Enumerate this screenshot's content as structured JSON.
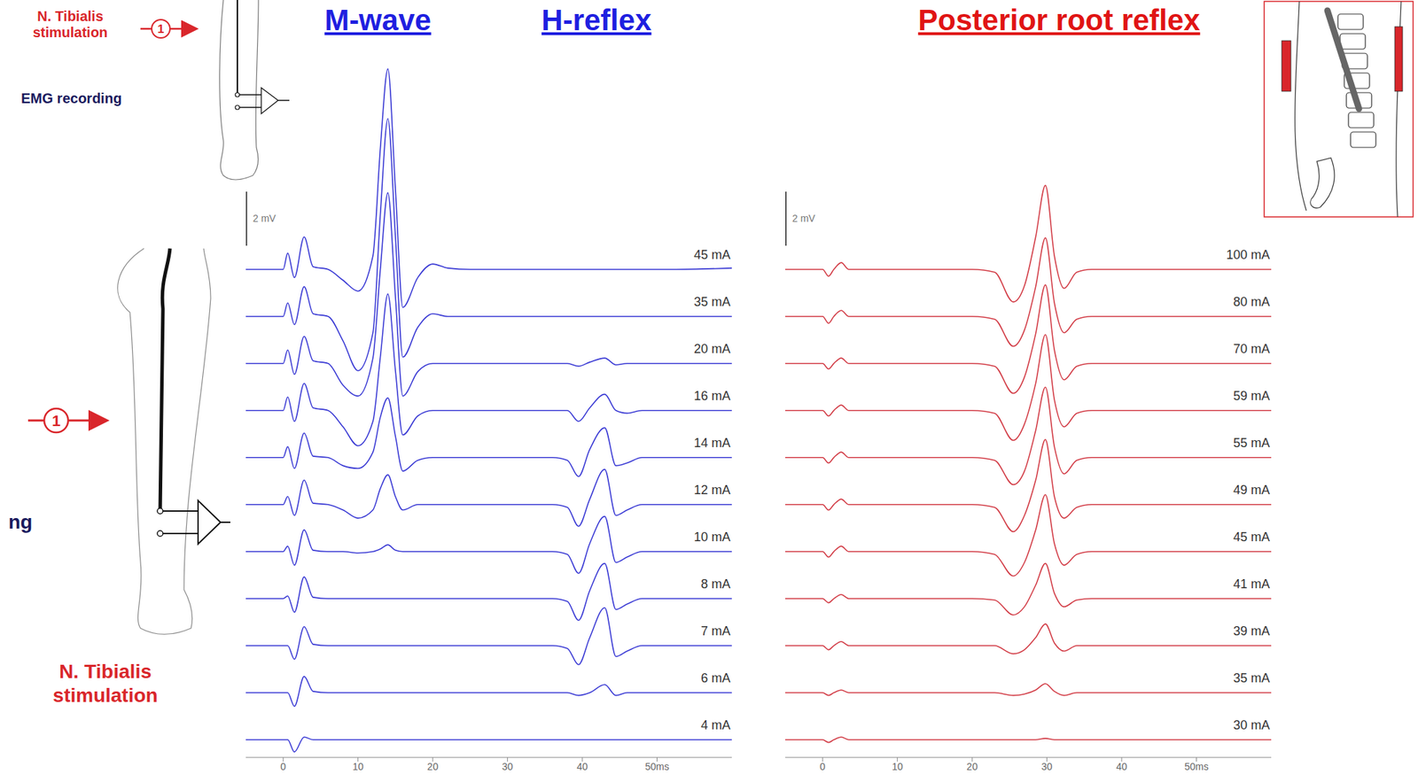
{
  "top_legend": {
    "stimulation": "N. Tibialis stimulation",
    "marker": "1",
    "recording": "EMG recording"
  },
  "leg_figure": {
    "stimulation": "N. Tibialis stimulation",
    "marker": "1",
    "recording_fragment": "ng"
  },
  "chart_data": [
    {
      "type": "line",
      "titles": [
        "M-wave",
        "H-reflex"
      ],
      "color": "#3a3ad4",
      "x": [
        -5,
        0,
        0.6,
        1.5,
        2.8,
        4,
        6,
        8,
        10,
        12,
        13,
        14,
        15,
        16,
        18,
        20,
        22,
        25,
        30,
        36,
        38,
        39.5,
        41,
        43,
        44.5,
        46,
        48,
        52,
        60
      ],
      "xlim": [
        -5,
        60
      ],
      "xticks": [
        0,
        10,
        20,
        30,
        40,
        {
          "value": 50,
          "label": "50ms"
        }
      ],
      "ylim": [
        -3,
        8
      ],
      "tick_labels": "x",
      "scale_bar": {
        "value": 2,
        "label": "2 mV"
      },
      "window": [
        31.8,
        52
      ],
      "series": [
        {
          "name": "45 mA",
          "values": [
            0,
            0,
            0.6,
            -0.3,
            1.2,
            0.1,
            0,
            -0.4,
            -0.8,
            0.5,
            4.5,
            7.4,
            3,
            -1.4,
            -0.3,
            0.2,
            0.05,
            0,
            0,
            0,
            0,
            0,
            0,
            0,
            0,
            0,
            0,
            0,
            0.05
          ]
        },
        {
          "name": "35 mA",
          "values": [
            0,
            0,
            0.5,
            -0.3,
            1.1,
            0.1,
            0,
            -0.9,
            -2,
            -0.6,
            3.8,
            7.3,
            3,
            -1.5,
            -0.4,
            0.1,
            0,
            0,
            0,
            0,
            0,
            0,
            0,
            0,
            0,
            0,
            0,
            0,
            0
          ]
        },
        {
          "name": "20 mA",
          "values": [
            0,
            0,
            0.5,
            -0.4,
            1,
            0.1,
            0,
            -0.8,
            -1.2,
            0.2,
            3.5,
            6.3,
            2.5,
            -1.2,
            -0.3,
            0,
            0,
            0,
            0,
            0,
            0,
            -0.1,
            0.05,
            0.2,
            -0.05,
            0,
            0,
            0,
            0
          ]
        },
        {
          "name": "16 mA",
          "values": [
            0,
            0,
            0.5,
            -0.4,
            1,
            0.1,
            0,
            -0.6,
            -1.3,
            -0.4,
            2,
            4.3,
            1.5,
            -0.9,
            -0.2,
            0,
            0,
            0,
            0,
            0,
            0,
            -0.4,
            0.1,
            0.6,
            0,
            -0.1,
            0,
            0,
            0
          ]
        },
        {
          "name": "14 mA",
          "values": [
            0,
            0,
            0.4,
            -0.4,
            0.9,
            0.05,
            0,
            -0.3,
            -0.4,
            0.2,
            1.5,
            2.2,
            0.8,
            -0.5,
            -0.1,
            0,
            0,
            0,
            0,
            0,
            -0.1,
            -0.7,
            0.3,
            1.1,
            -0.3,
            -0.2,
            0,
            0,
            0
          ]
        },
        {
          "name": "12 mA",
          "values": [
            0,
            0,
            0.3,
            -0.4,
            0.9,
            0.05,
            0,
            -0.2,
            -0.5,
            -0.2,
            0.6,
            1.1,
            0.3,
            -0.2,
            0,
            0,
            0,
            0,
            0,
            0,
            -0.1,
            -0.8,
            0.2,
            1.3,
            -0.4,
            -0.2,
            0,
            0,
            0
          ]
        },
        {
          "name": "10 mA",
          "values": [
            0,
            0,
            0.2,
            -0.5,
            0.8,
            0.05,
            0,
            0,
            -0.05,
            0,
            0.1,
            0.25,
            0.05,
            0,
            0,
            0,
            0,
            0,
            0,
            0,
            -0.1,
            -0.8,
            0.3,
            1.3,
            -0.4,
            -0.2,
            0,
            0,
            0
          ]
        },
        {
          "name": "8 mA",
          "values": [
            0,
            0,
            0.1,
            -0.5,
            0.8,
            0.05,
            0,
            0,
            0,
            0,
            0,
            0,
            0,
            0,
            0,
            0,
            0,
            0,
            0,
            0,
            -0.1,
            -0.8,
            0.3,
            1.3,
            -0.4,
            -0.2,
            0,
            0,
            0
          ]
        },
        {
          "name": "7 mA",
          "values": [
            0,
            0,
            0,
            -0.5,
            0.7,
            0.05,
            0,
            0,
            0,
            0,
            0,
            0,
            0,
            0,
            0,
            0,
            0,
            0,
            0,
            0,
            -0.1,
            -0.7,
            0.3,
            1.4,
            -0.4,
            -0.2,
            0,
            0,
            0
          ]
        },
        {
          "name": "6 mA",
          "values": [
            0,
            0,
            0,
            -0.5,
            0.6,
            0.05,
            0,
            0,
            0,
            0,
            0,
            0,
            0,
            0,
            0,
            0,
            0,
            0,
            0,
            0,
            0,
            -0.1,
            0,
            0.3,
            -0.1,
            0,
            0,
            0,
            0
          ]
        },
        {
          "name": "4 mA",
          "values": [
            0,
            0,
            0,
            -0.45,
            0.1,
            0,
            0,
            0,
            0,
            0,
            0,
            0,
            0,
            0,
            0,
            0,
            0,
            0,
            0,
            0,
            0,
            0,
            0,
            0,
            0,
            0,
            0,
            0,
            0
          ]
        }
      ]
    },
    {
      "type": "line",
      "titles": [
        "Posterior root reflex"
      ],
      "color": "#d23c46",
      "x": [
        -5,
        0,
        0.8,
        1.5,
        2.5,
        3.5,
        10,
        20,
        23,
        25.5,
        27,
        28.5,
        29.8,
        31,
        32.3,
        34,
        36,
        40,
        50,
        60
      ],
      "xlim": [
        -5,
        60
      ],
      "xticks": [
        0,
        10,
        20,
        30,
        40,
        {
          "value": 50,
          "label": "50ms"
        }
      ],
      "ylim": [
        -3,
        8
      ],
      "tick_labels": "x",
      "scale_bar": {
        "value": 2,
        "label": "2 mV"
      },
      "window": [
        19,
        39.3
      ],
      "series": [
        {
          "name": "100 mA",
          "values": [
            0,
            0,
            -0.25,
            0,
            0.25,
            0,
            0,
            0,
            -0.1,
            -1.2,
            -0.6,
            1.2,
            3.1,
            0.5,
            -0.7,
            -0.1,
            0,
            0,
            0,
            0
          ]
        },
        {
          "name": "80 mA",
          "values": [
            0,
            0,
            -0.25,
            0,
            0.22,
            0,
            0,
            0,
            -0.1,
            -1.1,
            -0.5,
            1.1,
            2.9,
            0.5,
            -0.6,
            -0.1,
            0,
            0,
            0,
            0
          ]
        },
        {
          "name": "70 mA",
          "values": [
            0,
            0,
            -0.2,
            0,
            0.2,
            0,
            0,
            0,
            -0.1,
            -1.1,
            -0.5,
            1.1,
            2.9,
            0.5,
            -0.6,
            -0.1,
            0,
            0,
            0,
            0
          ]
        },
        {
          "name": "59 mA",
          "values": [
            0,
            0,
            -0.2,
            0,
            0.2,
            0,
            0,
            0,
            -0.1,
            -1.1,
            -0.5,
            1,
            2.8,
            0.4,
            -0.6,
            -0.1,
            0,
            0,
            0,
            0
          ]
        },
        {
          "name": "55 mA",
          "values": [
            0,
            0,
            -0.2,
            0,
            0.2,
            0,
            0,
            0,
            -0.1,
            -1,
            -0.5,
            1,
            2.6,
            0.4,
            -0.6,
            -0.1,
            0,
            0,
            0,
            0
          ]
        },
        {
          "name": "49 mA",
          "values": [
            0,
            0,
            -0.2,
            0,
            0.2,
            0,
            0,
            0,
            -0.1,
            -1,
            -0.4,
            0.9,
            2.4,
            0.3,
            -0.5,
            -0.1,
            0,
            0,
            0,
            0
          ]
        },
        {
          "name": "45 mA",
          "values": [
            0,
            0,
            -0.2,
            0,
            0.2,
            0,
            0,
            0,
            -0.1,
            -0.9,
            -0.4,
            0.8,
            2.1,
            0.3,
            -0.5,
            -0.1,
            0,
            0,
            0,
            0
          ]
        },
        {
          "name": "41 mA",
          "values": [
            0,
            0,
            -0.15,
            0,
            0.15,
            0,
            0,
            0,
            -0.05,
            -0.6,
            -0.3,
            0.5,
            1.3,
            0.2,
            -0.3,
            -0.05,
            0,
            0,
            0,
            0
          ]
        },
        {
          "name": "39 mA",
          "values": [
            0,
            0,
            -0.15,
            0,
            0.15,
            0,
            0,
            0,
            0,
            -0.3,
            -0.15,
            0.3,
            0.8,
            0.1,
            -0.2,
            0,
            0,
            0,
            0,
            0
          ]
        },
        {
          "name": "35 mA",
          "values": [
            0,
            0,
            -0.1,
            0,
            0.1,
            0,
            0,
            0,
            0,
            -0.1,
            -0.05,
            0.1,
            0.33,
            0.05,
            -0.1,
            0,
            0,
            0,
            0,
            0
          ]
        },
        {
          "name": "30 mA",
          "values": [
            0,
            0,
            -0.1,
            0,
            0.1,
            0,
            0,
            0,
            0,
            0,
            0,
            0,
            0.05,
            0,
            0,
            0,
            0,
            0,
            0,
            0
          ]
        }
      ]
    }
  ]
}
